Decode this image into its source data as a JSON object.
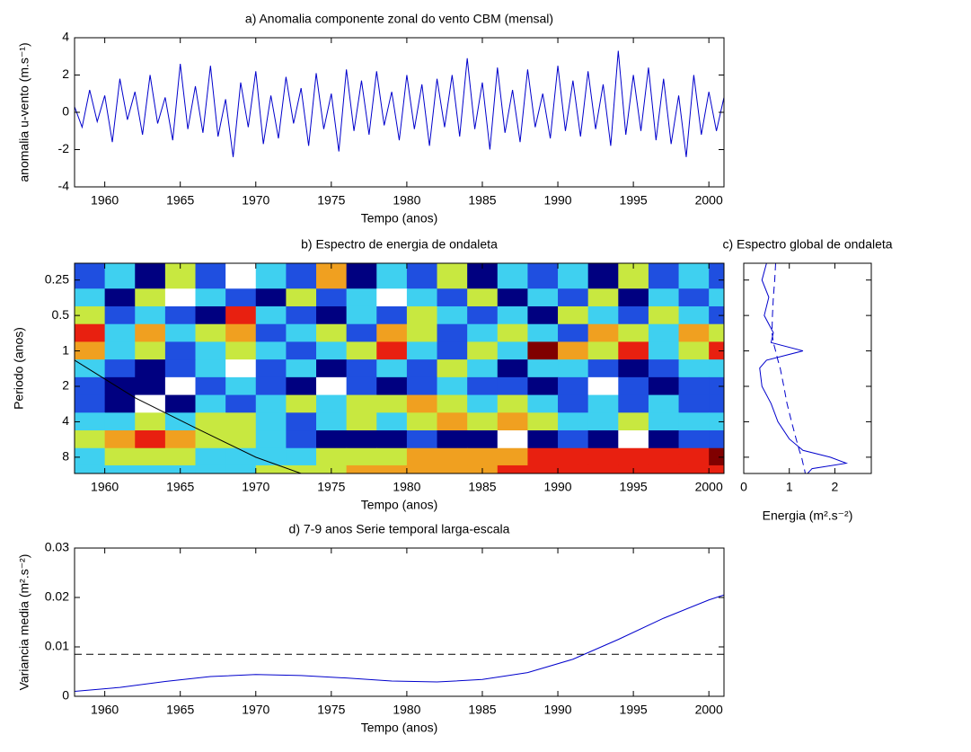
{
  "chart_data": [
    {
      "type": "line",
      "title": "a) Anomalia componente zonal do vento CBM (mensal)",
      "xlabel": "Tempo (anos)",
      "ylabel": "anomalia u-vento (m.s⁻¹)",
      "x": [
        1958,
        1958.5,
        1959,
        1959.5,
        1960,
        1960.5,
        1961,
        1961.5,
        1962,
        1962.5,
        1963,
        1963.5,
        1964,
        1964.5,
        1965,
        1965.5,
        1966,
        1966.5,
        1967,
        1967.5,
        1968,
        1968.5,
        1969,
        1969.5,
        1970,
        1970.5,
        1971,
        1971.5,
        1972,
        1972.5,
        1973,
        1973.5,
        1974,
        1974.5,
        1975,
        1975.5,
        1976,
        1976.5,
        1977,
        1977.5,
        1978,
        1978.5,
        1979,
        1979.5,
        1980,
        1980.5,
        1981,
        1981.5,
        1982,
        1982.5,
        1983,
        1983.5,
        1984,
        1984.5,
        1985,
        1985.5,
        1986,
        1986.5,
        1987,
        1987.5,
        1988,
        1988.5,
        1989,
        1989.5,
        1990,
        1990.5,
        1991,
        1991.5,
        1992,
        1992.5,
        1993,
        1993.5,
        1994,
        1994.5,
        1995,
        1995.5,
        1996,
        1996.5,
        1997,
        1997.5,
        1998,
        1998.5,
        1999,
        1999.5,
        2000,
        2000.5,
        2001
      ],
      "series": [
        {
          "color": "#0000cc",
          "values": [
            0.3,
            -0.8,
            1.2,
            -0.5,
            0.9,
            -1.6,
            1.8,
            -0.4,
            1.1,
            -1.2,
            2.0,
            -0.6,
            0.8,
            -1.5,
            2.6,
            -0.9,
            1.4,
            -1.1,
            2.5,
            -1.3,
            0.7,
            -2.4,
            1.6,
            -0.8,
            2.2,
            -1.7,
            0.9,
            -1.4,
            1.9,
            -0.6,
            1.3,
            -1.8,
            2.1,
            -0.9,
            1.0,
            -2.1,
            2.3,
            -1.0,
            1.7,
            -1.2,
            2.2,
            -0.7,
            1.1,
            -1.5,
            2.0,
            -0.9,
            1.5,
            -1.8,
            1.8,
            -0.8,
            2.0,
            -1.3,
            2.9,
            -0.9,
            1.6,
            -2.0,
            2.4,
            -1.1,
            1.2,
            -1.6,
            2.3,
            -0.8,
            1.0,
            -1.4,
            2.5,
            -1.0,
            1.7,
            -1.3,
            2.2,
            -0.9,
            1.5,
            -1.8,
            3.3,
            -1.2,
            2.0,
            -1.0,
            2.4,
            -1.5,
            1.8,
            -1.7,
            0.9,
            -2.4,
            2.0,
            -1.2,
            1.1,
            -1.0,
            0.8
          ]
        }
      ],
      "xlim": [
        1958,
        2001
      ],
      "xticks": [
        1960,
        1965,
        1970,
        1975,
        1980,
        1985,
        1990,
        1995,
        2000
      ],
      "ylim": [
        -4,
        4
      ],
      "yticks": [
        -4,
        -2,
        0,
        2,
        4
      ]
    },
    {
      "type": "heatmap",
      "title": "b) Espectro de energia de ondaleta",
      "xlabel": "Tempo (anos)",
      "ylabel": "Periodo (anos)",
      "x": [
        1959,
        1961,
        1963,
        1965,
        1967,
        1969,
        1971,
        1973,
        1975,
        1977,
        1979,
        1981,
        1983,
        1985,
        1987,
        1989,
        1991,
        1993,
        1995,
        1997,
        1999,
        2001
      ],
      "y": [
        0.25,
        0.35,
        0.5,
        0.7,
        1,
        1.4,
        2,
        2.8,
        4,
        5.6,
        8,
        11
      ],
      "z": [
        [
          2,
          3,
          1,
          4,
          2,
          0,
          3,
          2,
          5,
          1,
          3,
          2,
          4,
          1,
          3,
          2,
          3,
          1,
          4,
          2,
          3,
          2
        ],
        [
          3,
          1,
          4,
          0,
          3,
          2,
          1,
          4,
          2,
          3,
          0,
          3,
          2,
          4,
          1,
          3,
          2,
          4,
          1,
          3,
          2,
          3
        ],
        [
          4,
          2,
          3,
          2,
          1,
          6,
          3,
          2,
          1,
          3,
          2,
          4,
          3,
          2,
          3,
          1,
          4,
          3,
          2,
          4,
          3,
          2
        ],
        [
          6,
          3,
          5,
          3,
          4,
          5,
          2,
          3,
          4,
          2,
          5,
          4,
          2,
          3,
          4,
          3,
          2,
          5,
          4,
          3,
          5,
          4
        ],
        [
          5,
          3,
          4,
          2,
          3,
          4,
          3,
          2,
          3,
          4,
          6,
          3,
          2,
          4,
          3,
          7,
          5,
          4,
          6,
          3,
          4,
          6
        ],
        [
          3,
          2,
          1,
          2,
          3,
          0,
          2,
          3,
          1,
          2,
          3,
          2,
          4,
          3,
          1,
          3,
          3,
          2,
          1,
          2,
          3,
          3
        ],
        [
          2,
          1,
          1,
          0,
          2,
          3,
          2,
          1,
          0,
          2,
          1,
          2,
          3,
          2,
          2,
          1,
          2,
          0,
          2,
          1,
          2,
          2
        ],
        [
          2,
          1,
          0,
          1,
          3,
          2,
          3,
          4,
          3,
          4,
          4,
          5,
          4,
          3,
          4,
          3,
          2,
          3,
          2,
          3,
          2,
          2
        ],
        [
          3,
          3,
          4,
          3,
          4,
          4,
          3,
          2,
          3,
          4,
          3,
          4,
          5,
          4,
          5,
          4,
          3,
          3,
          4,
          3,
          3,
          3
        ],
        [
          4,
          5,
          6,
          5,
          4,
          4,
          3,
          2,
          1,
          1,
          1,
          2,
          1,
          1,
          0,
          1,
          2,
          1,
          0,
          1,
          2,
          2
        ],
        [
          3,
          4,
          4,
          4,
          3,
          3,
          3,
          3,
          4,
          4,
          4,
          5,
          5,
          5,
          5,
          6,
          6,
          6,
          6,
          6,
          6,
          7
        ],
        [
          3,
          3,
          3,
          3,
          3,
          3,
          4,
          4,
          4,
          5,
          5,
          5,
          5,
          5,
          6,
          6,
          6,
          6,
          6,
          6,
          6,
          6
        ]
      ],
      "level_colors": [
        "#ffffff",
        "#000080",
        "#1f4fe0",
        "#3fd0f0",
        "#c8e840",
        "#f0a020",
        "#e82010",
        "#800000"
      ],
      "coi": {
        "x": [
          1958,
          1962,
          1966,
          1970,
          1973
        ],
        "y": [
          1.2,
          2.5,
          4.5,
          8,
          11
        ]
      },
      "xlim": [
        1958,
        2001
      ],
      "xticks": [
        1960,
        1965,
        1970,
        1975,
        1980,
        1985,
        1990,
        1995,
        2000
      ],
      "ylim": [
        0.18,
        11
      ],
      "ylog": true,
      "yreversed": true,
      "yticks": [
        0.25,
        0.5,
        1,
        2,
        4,
        8
      ]
    },
    {
      "type": "line",
      "orientation": "horizontal",
      "title": "c) Espectro global de ondaleta",
      "xlabel": "Energia (m².s⁻²)",
      "y": [
        0.18,
        0.25,
        0.35,
        0.5,
        0.7,
        0.85,
        1,
        1.2,
        1.4,
        2,
        2.8,
        4,
        5.6,
        7,
        8,
        9,
        10,
        11
      ],
      "series": [
        {
          "color": "#0000cc",
          "dashed": false,
          "values": [
            0.5,
            0.4,
            0.55,
            0.45,
            0.65,
            0.6,
            1.3,
            0.5,
            0.35,
            0.4,
            0.6,
            0.75,
            1.0,
            1.3,
            1.9,
            2.25,
            1.5,
            1.4
          ]
        },
        {
          "color": "#0000cc",
          "dashed": true,
          "values": [
            0.7,
            0.68,
            0.65,
            0.63,
            0.62,
            0.65,
            0.7,
            0.75,
            0.8,
            0.88,
            0.95,
            1.05,
            1.15,
            1.22,
            1.27,
            1.3,
            1.33,
            1.35
          ]
        }
      ],
      "xlim": [
        0,
        2.8
      ],
      "xticks": [
        0,
        1,
        2
      ],
      "ylim": [
        0.18,
        11
      ],
      "ylog": true,
      "yreversed": true
    },
    {
      "type": "line",
      "title": "d) 7-9 anos Serie temporal larga-escala",
      "xlabel": "Tempo (anos)",
      "ylabel": "Variancia media (m².s⁻²)",
      "x": [
        1958,
        1961,
        1964,
        1967,
        1970,
        1973,
        1976,
        1979,
        1982,
        1985,
        1988,
        1991,
        1994,
        1997,
        2000,
        2001
      ],
      "series": [
        {
          "color": "#0000cc",
          "values": [
            0.001,
            0.0018,
            0.003,
            0.004,
            0.0044,
            0.0042,
            0.0037,
            0.0031,
            0.0029,
            0.0034,
            0.0048,
            0.0075,
            0.0115,
            0.0158,
            0.0195,
            0.0205
          ]
        }
      ],
      "threshold": 0.0085,
      "xlim": [
        1958,
        2001
      ],
      "xticks": [
        1960,
        1965,
        1970,
        1975,
        1980,
        1985,
        1990,
        1995,
        2000
      ],
      "ylim": [
        0,
        0.03
      ],
      "yticks": [
        0,
        0.01,
        0.02,
        0.03
      ]
    }
  ]
}
